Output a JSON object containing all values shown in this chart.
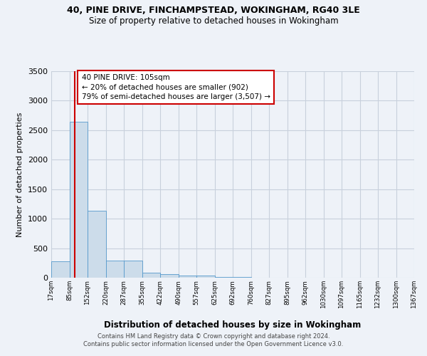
{
  "title1": "40, PINE DRIVE, FINCHAMPSTEAD, WOKINGHAM, RG40 3LE",
  "title2": "Size of property relative to detached houses in Wokingham",
  "xlabel": "Distribution of detached houses by size in Wokingham",
  "ylabel": "Number of detached properties",
  "footer1": "Contains HM Land Registry data © Crown copyright and database right 2024.",
  "footer2": "Contains public sector information licensed under the Open Government Licence v3.0.",
  "bar_edges": [
    17,
    85,
    152,
    220,
    287,
    355,
    422,
    490,
    557,
    625,
    692,
    760,
    827,
    895,
    962,
    1030,
    1097,
    1165,
    1232,
    1300,
    1367
  ],
  "bar_heights": [
    280,
    2640,
    1140,
    290,
    290,
    80,
    60,
    40,
    35,
    10,
    8,
    5,
    5,
    3,
    2,
    2,
    1,
    1,
    1,
    1
  ],
  "bar_color": "#ccdcea",
  "bar_edgecolor": "#5599cc",
  "grid_color": "#c8d0dc",
  "background_color": "#eef2f8",
  "vline_x": 105,
  "vline_color": "#cc0000",
  "annotation_text": "40 PINE DRIVE: 105sqm\n← 20% of detached houses are smaller (902)\n79% of semi-detached houses are larger (3,507) →",
  "annotation_box_color": "#ffffff",
  "annotation_text_color": "#000000",
  "annotation_border_color": "#cc0000",
  "ylim": [
    0,
    3500
  ],
  "xlim": [
    17,
    1367
  ],
  "yticks": [
    0,
    500,
    1000,
    1500,
    2000,
    2500,
    3000,
    3500
  ],
  "xtick_labels": [
    "17sqm",
    "85sqm",
    "152sqm",
    "220sqm",
    "287sqm",
    "355sqm",
    "422sqm",
    "490sqm",
    "557sqm",
    "625sqm",
    "692sqm",
    "760sqm",
    "827sqm",
    "895sqm",
    "962sqm",
    "1030sqm",
    "1097sqm",
    "1165sqm",
    "1232sqm",
    "1300sqm",
    "1367sqm"
  ]
}
